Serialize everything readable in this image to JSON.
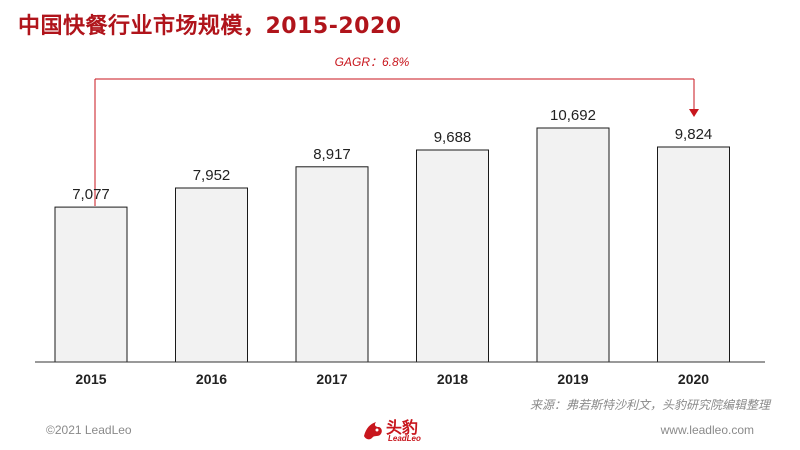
{
  "title": "中国快餐行业市场规模，2015-2020",
  "annotation": {
    "cagr_label": "GAGR：6.8%"
  },
  "chart_data": {
    "type": "bar",
    "title": "中国快餐行业市场规模，2015-2020",
    "categories": [
      "2015",
      "2016",
      "2017",
      "2018",
      "2019",
      "2020"
    ],
    "values": [
      7077,
      7952,
      8917,
      9688,
      10692,
      9824
    ],
    "value_labels": [
      "7,077",
      "7,952",
      "8,917",
      "9,688",
      "10,692",
      "9,824"
    ],
    "xlabel": "",
    "ylabel": "",
    "ylim": [
      0,
      10692
    ],
    "grid": false,
    "legend": "none",
    "bar_fill": "#f2f2f2",
    "bar_stroke": "#1a1a1a"
  },
  "footer": {
    "source": "来源：弗若斯特沙利文，头豹研究院编辑整理",
    "copyright": "©2021 LeadLeo",
    "website": "www.leadleo.com",
    "logo_text": "头豹",
    "logo_sub": "LeadLeo"
  },
  "colors": {
    "accent": "#c8161d",
    "title": "#b0141b",
    "muted": "#8a8a8a"
  }
}
